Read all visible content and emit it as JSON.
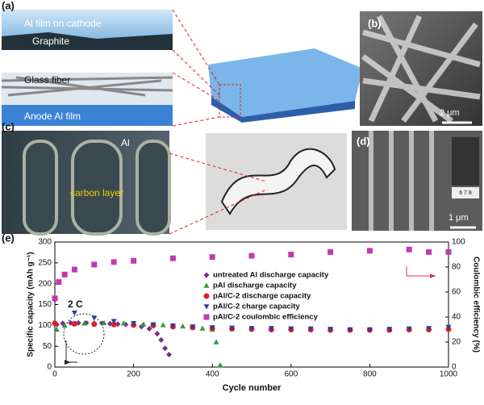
{
  "panels": {
    "a": {
      "label": "(a)",
      "texts": [
        "Al film on cathode",
        "Graphite",
        "Glass fiber",
        "Anode Al film"
      ]
    },
    "b": {
      "label": "(b)",
      "scale": "2 μm"
    },
    "c": {
      "label": "(c)",
      "texts": [
        "Al",
        "carbon layer"
      ]
    },
    "d": {
      "label": "(d)",
      "scale": "1 μm",
      "ruler": "6 7 8"
    },
    "e": {
      "label": "(e)"
    }
  },
  "chart_data": {
    "type": "scatter",
    "xlabel": "Cycle number",
    "ylabel": "Specific capacity (mAh g⁻¹)",
    "y2label": "Coulombic efficiency (%)",
    "annotation": "2 C",
    "xlim": [
      0,
      1000
    ],
    "xticks": [
      0,
      200,
      400,
      600,
      800,
      1000
    ],
    "ylim": [
      0,
      300
    ],
    "yticks": [
      0,
      50,
      100,
      150,
      200,
      250,
      300
    ],
    "y2lim": [
      0,
      100
    ],
    "y2ticks": [
      0,
      20,
      40,
      60,
      80,
      100
    ],
    "series": [
      {
        "name": "untreated Al discharge capacity",
        "color": "#7b2d8e",
        "marker": "diamond",
        "x": [
          5,
          20,
          40,
          60,
          80,
          100,
          120,
          140,
          160,
          180,
          200,
          220,
          240,
          260,
          270,
          280,
          290
        ],
        "values": [
          102,
          105,
          106,
          106,
          106,
          105,
          105,
          104,
          103,
          102,
          100,
          97,
          92,
          80,
          65,
          45,
          30
        ]
      },
      {
        "name": "pAl discharge capacity",
        "color": "#2e9b3a",
        "marker": "triangle",
        "x": [
          5,
          25,
          50,
          75,
          100,
          125,
          150,
          175,
          200,
          225,
          250,
          275,
          300,
          325,
          350,
          375,
          400,
          410,
          420
        ],
        "values": [
          90,
          100,
          104,
          105,
          106,
          106,
          105,
          105,
          104,
          103,
          102,
          101,
          100,
          98,
          96,
          93,
          90,
          60,
          5
        ]
      },
      {
        "name": "pAl/C-2 discharge capacity",
        "color": "#e02020",
        "marker": "circle",
        "x": [
          0,
          50,
          100,
          150,
          200,
          250,
          300,
          350,
          400,
          450,
          500,
          550,
          600,
          650,
          700,
          750,
          800,
          850,
          900,
          950,
          1000
        ],
        "values": [
          105,
          104,
          103,
          102,
          101,
          100,
          97,
          95,
          93,
          92,
          91,
          90,
          90,
          90,
          89,
          89,
          89,
          89,
          90,
          90,
          91
        ]
      },
      {
        "name": "pAl/C-2 charge capacity",
        "color": "#2b3f9c",
        "marker": "triangle-down",
        "x": [
          0,
          50,
          100,
          150,
          200,
          250,
          300,
          350,
          400,
          450,
          500,
          550,
          600,
          650,
          700,
          750,
          800,
          850,
          900,
          950,
          1000
        ],
        "values": [
          160,
          130,
          118,
          110,
          105,
          102,
          99,
          97,
          95,
          94,
          93,
          93,
          92,
          92,
          91,
          90,
          90,
          91,
          92,
          93,
          96
        ]
      },
      {
        "name": "pAl/C-2 coulombic efficiency",
        "color": "#c03ab0",
        "marker": "square",
        "axis": "y2",
        "x": [
          0,
          10,
          25,
          50,
          100,
          150,
          200,
          300,
          400,
          500,
          600,
          700,
          800,
          900,
          950,
          1000
        ],
        "values": [
          55,
          68,
          74,
          78,
          82,
          84,
          85,
          87,
          88,
          89,
          90,
          92,
          93,
          94,
          92,
          92
        ]
      }
    ]
  }
}
